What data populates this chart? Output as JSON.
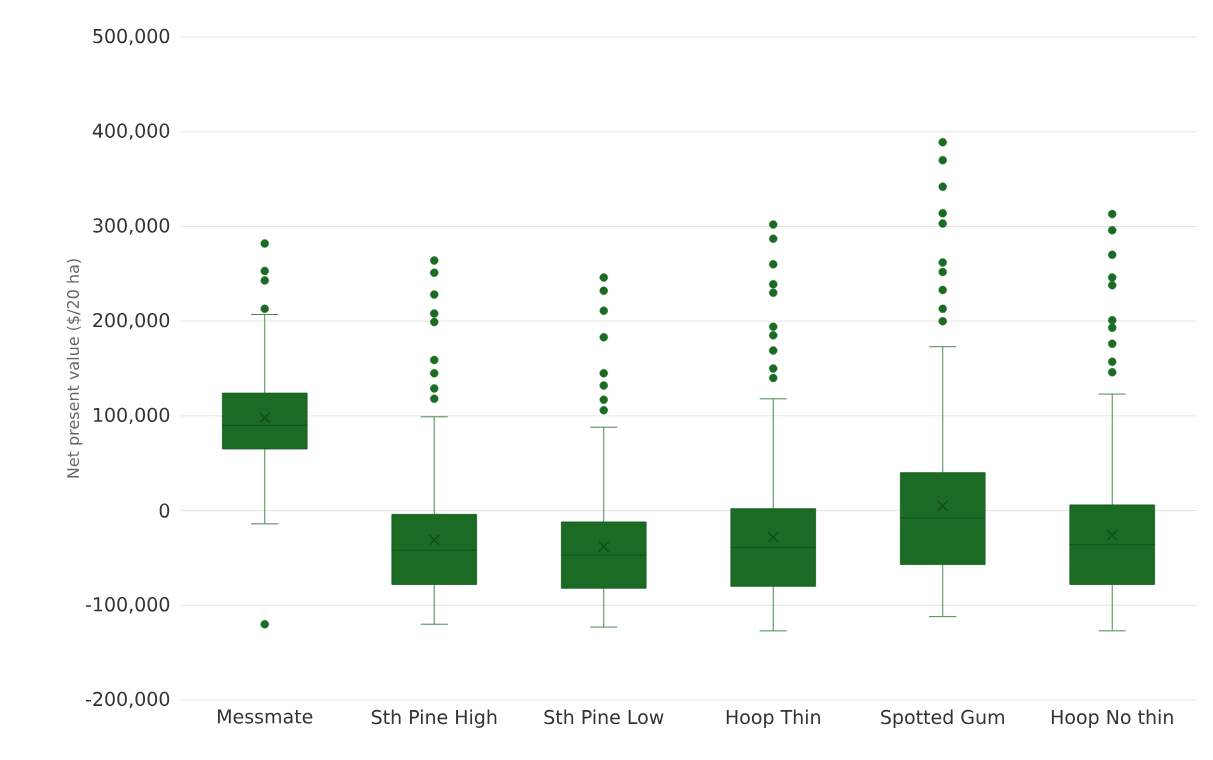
{
  "chart_data": {
    "type": "box",
    "ylabel": "Net present value ($/20 ha)",
    "categories": [
      "Messmate",
      "Sth Pine High",
      "Sth Pine Low",
      "Hoop Thin",
      "Spotted Gum",
      "Hoop No thin"
    ],
    "color": "#1b6b25",
    "boxes": [
      {
        "low": -14000,
        "q1": 65000,
        "median": 90000,
        "q3": 124000,
        "high": 207000,
        "mean": 98000,
        "outliers": [
          282000,
          253000,
          243000,
          213000,
          -120000
        ]
      },
      {
        "low": -120000,
        "q1": -78000,
        "median": -42000,
        "q3": -4000,
        "high": 99000,
        "mean": -31000,
        "outliers": [
          264000,
          251000,
          228000,
          208000,
          199000,
          159000,
          145000,
          129000,
          118000
        ]
      },
      {
        "low": -123000,
        "q1": -82000,
        "median": -47000,
        "q3": -12000,
        "high": 88000,
        "mean": -38000,
        "outliers": [
          246000,
          232000,
          211000,
          183000,
          145000,
          132000,
          117000,
          106000
        ]
      },
      {
        "low": -127000,
        "q1": -80000,
        "median": -39000,
        "q3": 2000,
        "high": 118000,
        "mean": -28000,
        "outliers": [
          302000,
          287000,
          260000,
          239000,
          230000,
          194000,
          185000,
          169000,
          150000,
          140000
        ]
      },
      {
        "low": -112000,
        "q1": -57000,
        "median": -8000,
        "q3": 40000,
        "high": 173000,
        "mean": 5000,
        "outliers": [
          389000,
          370000,
          342000,
          314000,
          303000,
          262000,
          252000,
          233000,
          213000,
          200000
        ]
      },
      {
        "low": -127000,
        "q1": -78000,
        "median": -36000,
        "q3": 6000,
        "high": 123000,
        "mean": -26000,
        "outliers": [
          313000,
          296000,
          270000,
          246000,
          238000,
          201000,
          193000,
          176000,
          157000,
          146000
        ]
      }
    ],
    "ylim": [
      -200000,
      500000
    ],
    "yticks": [
      {
        "value": -200000,
        "label": "-200,000"
      },
      {
        "value": -100000,
        "label": "-100,000"
      },
      0,
      {
        "value": 100000,
        "label": "100,000"
      },
      {
        "value": 200000,
        "label": "200,000"
      },
      {
        "value": 300000,
        "label": "300,000"
      },
      {
        "value": 400000,
        "label": "400,000"
      },
      {
        "value": 500000,
        "label": "500,000"
      }
    ],
    "grid": "y"
  }
}
